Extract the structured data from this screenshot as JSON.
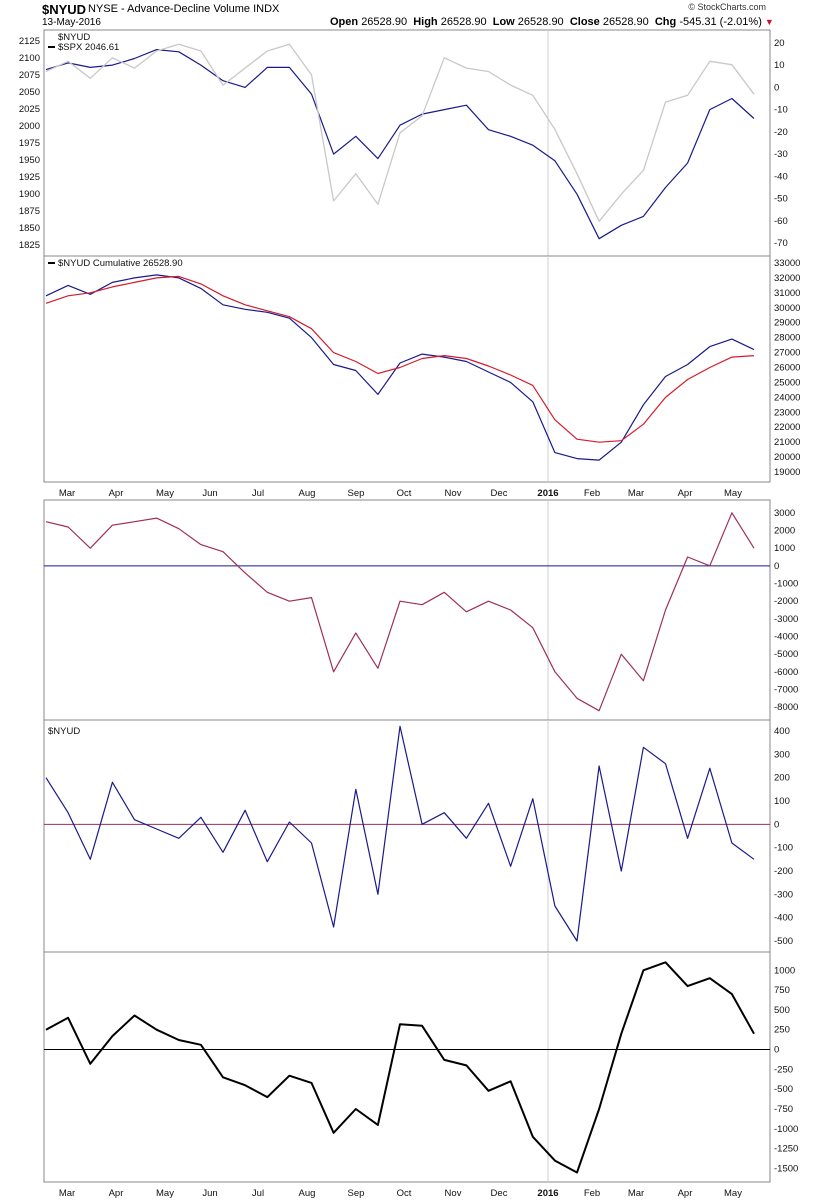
{
  "header": {
    "symbol": "$NYUD",
    "title": "NYSE - Advance-Decline Volume INDX",
    "date": "13-May-2016",
    "open_label": "Open",
    "open": "26528.90",
    "high_label": "High",
    "high": "26528.90",
    "low_label": "Low",
    "low": "26528.90",
    "close_label": "Close",
    "close": "26528.90",
    "chg_label": "Chg",
    "chg": "-545.31 (-2.01%)",
    "brand": "© StockCharts.com"
  },
  "chart_data": [
    {
      "type": "line",
      "panel": "price",
      "legend": [
        "$NYUD",
        "$SPX 2046.61"
      ],
      "left_axis_ticks": [
        2125,
        2100,
        2075,
        2050,
        2025,
        2000,
        1975,
        1950,
        1925,
        1900,
        1875,
        1850,
        1825
      ],
      "right_axis_ticks": [
        20,
        10,
        0,
        -10,
        -20,
        -30,
        -40,
        -50,
        -60,
        -70
      ],
      "ylim_left": [
        1815,
        2135
      ],
      "ylim_right": [
        -74,
        24
      ],
      "x": [
        0,
        2,
        4,
        6,
        8,
        10,
        12,
        14,
        16,
        18,
        20,
        22,
        24,
        26,
        28,
        30,
        32,
        34,
        36,
        38,
        40,
        42,
        44,
        46,
        48,
        50,
        52,
        54,
        56,
        58,
        60,
        62,
        64
      ],
      "series": [
        {
          "name": "$NYUD",
          "color": "#1a1a8c",
          "axis": "right",
          "values": [
            8,
            11,
            9,
            10,
            13,
            17,
            16,
            10,
            3,
            0,
            9,
            9,
            -3,
            -30,
            -22,
            -32,
            -17,
            -12,
            -10,
            -8,
            -19,
            -22,
            -26,
            -33,
            -48,
            -68,
            -62,
            -58,
            -45,
            -34,
            -10,
            -5,
            -14
          ]
        },
        {
          "name": "$SPX 2046.61",
          "color": "#c8c8c8",
          "axis": "left",
          "values": [
            2080,
            2095,
            2070,
            2100,
            2085,
            2110,
            2120,
            2110,
            2060,
            2085,
            2110,
            2120,
            2075,
            1890,
            1930,
            1885,
            1990,
            2015,
            2100,
            2085,
            2080,
            2060,
            2045,
            1995,
            1930,
            1860,
            1900,
            1935,
            2035,
            2045,
            2095,
            2090,
            2046.61
          ]
        }
      ]
    },
    {
      "type": "line",
      "panel": "cumulative",
      "legend": [
        "$NYUD Cumulative 26528.90"
      ],
      "axis_ticks": [
        33000,
        32000,
        31000,
        30000,
        29000,
        28000,
        27000,
        26000,
        25000,
        24000,
        23000,
        22000,
        21000,
        20000,
        19000
      ],
      "ylim": [
        18600,
        33200
      ],
      "x": [
        0,
        2,
        4,
        6,
        8,
        10,
        12,
        14,
        16,
        18,
        20,
        22,
        24,
        26,
        28,
        30,
        32,
        34,
        36,
        38,
        40,
        42,
        44,
        46,
        48,
        50,
        52,
        54,
        56,
        58,
        60,
        62,
        64
      ],
      "series": [
        {
          "name": "$NYUD Cumulative",
          "color": "#1a1a8c",
          "values": [
            30800,
            31500,
            30900,
            31700,
            32000,
            32200,
            32000,
            31300,
            30200,
            29900,
            29700,
            29300,
            28000,
            26200,
            25800,
            24200,
            26300,
            26900,
            26700,
            26400,
            25700,
            25000,
            23700,
            20300,
            19900,
            19800,
            21000,
            23500,
            25400,
            26200,
            27400,
            27900,
            27200
          ]
        },
        {
          "name": "Moving Average",
          "color": "#d41c2c",
          "values": [
            30300,
            30800,
            31000,
            31400,
            31700,
            32000,
            32100,
            31600,
            30800,
            30200,
            29800,
            29400,
            28600,
            27000,
            26400,
            25600,
            26000,
            26600,
            26800,
            26600,
            26100,
            25500,
            24800,
            22500,
            21200,
            21000,
            21100,
            22200,
            24000,
            25200,
            26000,
            26700,
            26800
          ]
        }
      ]
    },
    {
      "type": "line",
      "panel": "indicator-1",
      "axis_ticks": [
        3000,
        2000,
        1000,
        0,
        -1000,
        -2000,
        -3000,
        -4000,
        -5000,
        -6000,
        -7000,
        -8000
      ],
      "ylim": [
        -8500,
        3500
      ],
      "x": [
        0,
        2,
        4,
        6,
        8,
        10,
        12,
        14,
        16,
        18,
        20,
        22,
        24,
        26,
        28,
        30,
        32,
        34,
        36,
        38,
        40,
        42,
        44,
        46,
        48,
        50,
        52,
        54,
        56,
        58,
        60,
        62,
        64
      ],
      "series": [
        {
          "name": "",
          "color": "#9e2f5c",
          "values": [
            2500,
            2200,
            1000,
            2300,
            2500,
            2700,
            2100,
            1200,
            800,
            -400,
            -1500,
            -2000,
            -1800,
            -6000,
            -3800,
            -5800,
            -2000,
            -2200,
            -1500,
            -2600,
            -2000,
            -2500,
            -3500,
            -6000,
            -7500,
            -8200,
            -5000,
            -6500,
            -2500,
            500,
            0,
            3000,
            1000
          ]
        }
      ],
      "reference_line": 0
    },
    {
      "type": "line",
      "panel": "indicator-2",
      "legend": [
        "$NYUD"
      ],
      "axis_ticks": [
        400,
        300,
        200,
        100,
        0,
        -100,
        -200,
        -300,
        -400,
        -500
      ],
      "ylim": [
        -530,
        430
      ],
      "x": [
        0,
        2,
        4,
        6,
        8,
        10,
        12,
        14,
        16,
        18,
        20,
        22,
        24,
        26,
        28,
        30,
        32,
        34,
        36,
        38,
        40,
        42,
        44,
        46,
        48,
        50,
        52,
        54,
        56,
        58,
        60,
        62,
        64
      ],
      "series": [
        {
          "name": "$NYUD",
          "color": "#1a1a8c",
          "values": [
            200,
            50,
            -150,
            180,
            20,
            -20,
            -60,
            30,
            -120,
            60,
            -160,
            10,
            -80,
            -440,
            150,
            -300,
            420,
            0,
            50,
            -60,
            90,
            -180,
            110,
            -350,
            -500,
            250,
            -200,
            330,
            260,
            -60,
            240,
            -80,
            -150
          ]
        }
      ],
      "reference_line": 0
    },
    {
      "type": "line",
      "panel": "indicator-3",
      "axis_ticks": [
        1000,
        750,
        500,
        250,
        0,
        -250,
        -500,
        -750,
        -1000,
        -1250,
        -1500
      ],
      "ylim": [
        -1620,
        1180
      ],
      "x": [
        0,
        2,
        4,
        6,
        8,
        10,
        12,
        14,
        16,
        18,
        20,
        22,
        24,
        26,
        28,
        30,
        32,
        34,
        36,
        38,
        40,
        42,
        44,
        46,
        48,
        50,
        52,
        54,
        56,
        58,
        60,
        62,
        64
      ],
      "series": [
        {
          "name": "",
          "color": "#000000",
          "values": [
            250,
            400,
            -180,
            170,
            430,
            250,
            120,
            60,
            -350,
            -450,
            -600,
            -330,
            -420,
            -1050,
            -750,
            -950,
            320,
            300,
            -130,
            -200,
            -520,
            -400,
            -1100,
            -1400,
            -1550,
            -750,
            200,
            1000,
            1100,
            800,
            900,
            700,
            200
          ]
        }
      ],
      "reference_line": 0
    }
  ],
  "x_axis": {
    "months": [
      "Mar",
      "Apr",
      "May",
      "Jun",
      "Jul",
      "Aug",
      "Sep",
      "Oct",
      "Nov",
      "Dec",
      "2016",
      "Feb",
      "Mar",
      "Apr",
      "May"
    ]
  }
}
